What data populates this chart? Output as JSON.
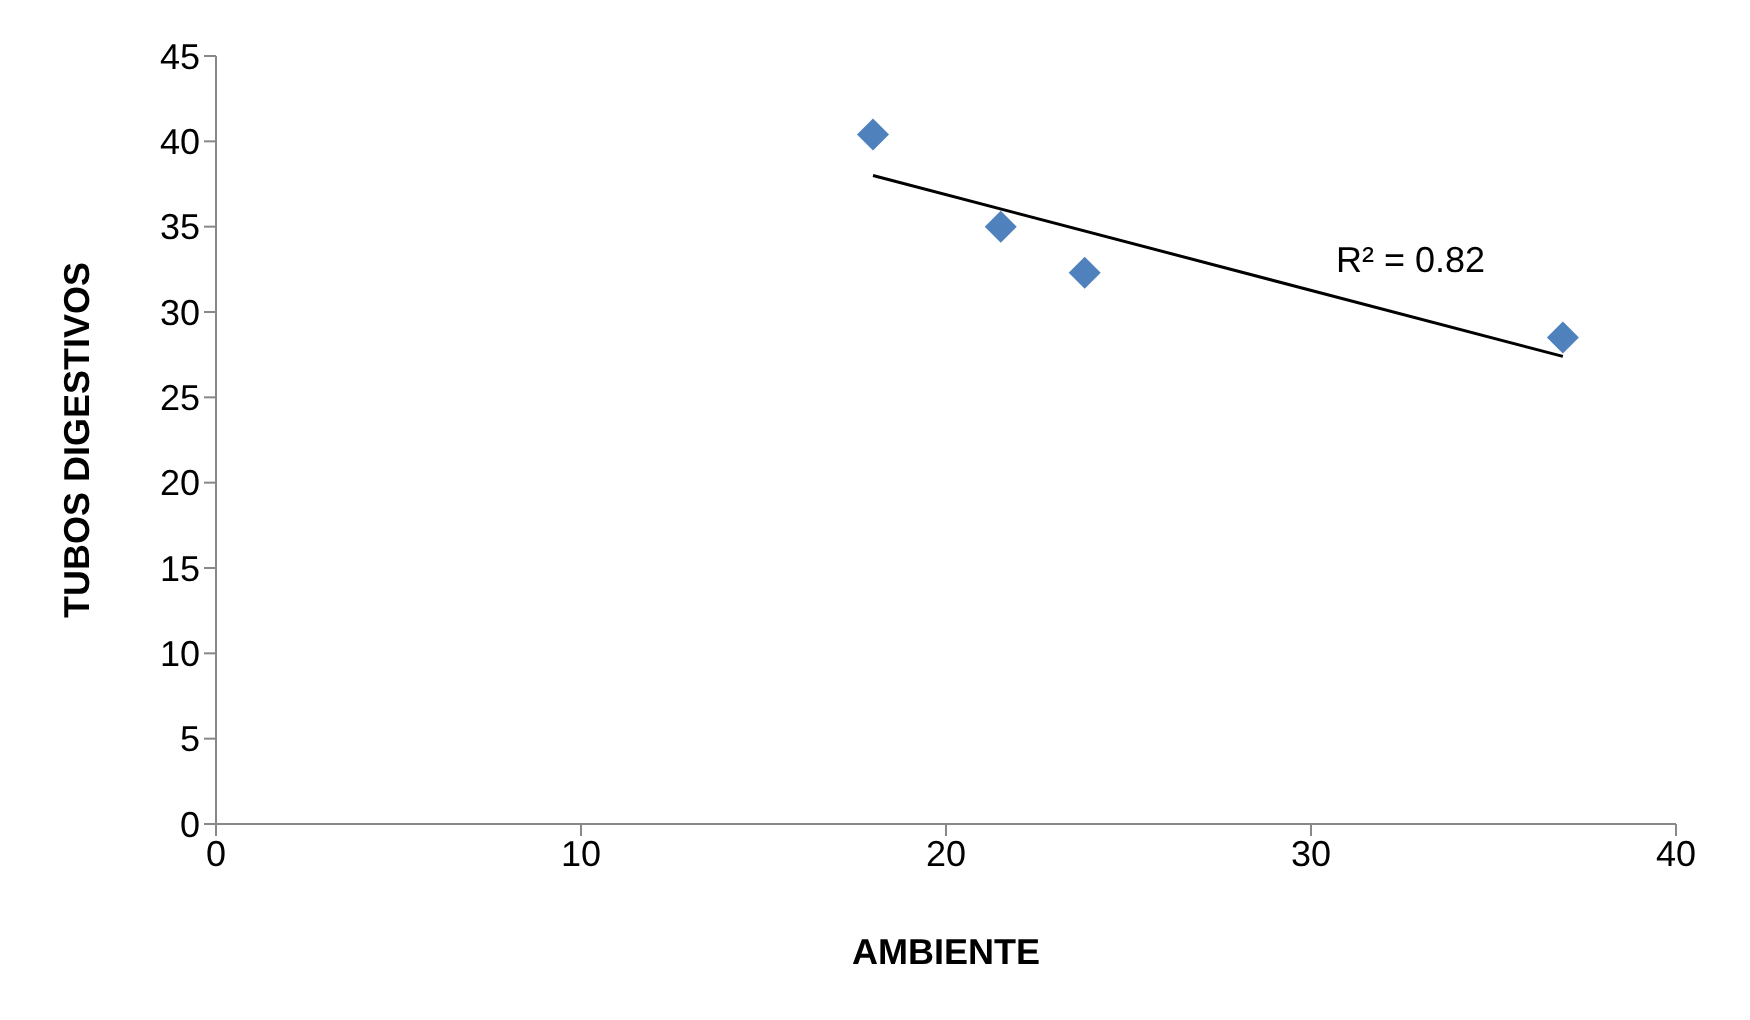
{
  "chart_data": {
    "type": "scatter",
    "xlabel": "AMBIENTE",
    "ylabel": "TUBOS DIGESTIVOS",
    "series": [
      {
        "color": "#4f81bd",
        "marker": "diamond",
        "x": [
          18,
          21.5,
          23.8,
          36.9
        ],
        "values": [
          40.4,
          35.0,
          32.3,
          28.5
        ]
      },
      {
        "type": "line",
        "color": "#000000",
        "marker": "none",
        "line_style": "solid",
        "x": [
          18,
          36.9
        ],
        "values": [
          38.0,
          27.4
        ]
      }
    ],
    "xlim": [
      0,
      40
    ],
    "xticks": [
      0,
      10,
      20,
      30,
      40
    ],
    "ylim": [
      0,
      45
    ],
    "yticks": [
      0,
      5,
      10,
      15,
      20,
      25,
      30,
      35,
      40,
      45
    ],
    "grid": false,
    "annotations": [
      "R² = 0.82"
    ]
  }
}
